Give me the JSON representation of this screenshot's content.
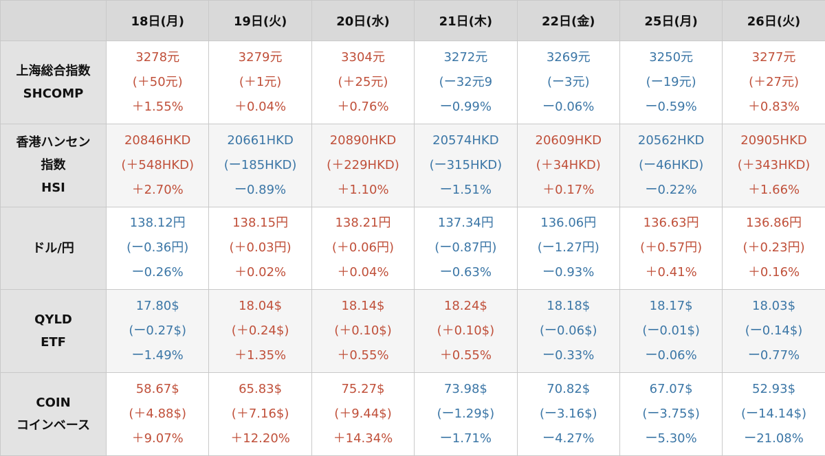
{
  "header": {
    "corner": "",
    "dates": [
      "18日(月)",
      "19日(火)",
      "20日(水)",
      "21日(木)",
      "22日(金)",
      "25日(月)",
      "26日(火)"
    ]
  },
  "colors": {
    "up": "#c0503a",
    "down": "#3b76a6",
    "header_bg": "#d9d9d9"
  },
  "rows": [
    {
      "label": [
        "上海総合指数",
        "SHCOMP"
      ],
      "cells": [
        {
          "dir": "up",
          "lines": [
            "3278元",
            "(＋50元)",
            "＋1.55%"
          ]
        },
        {
          "dir": "up",
          "lines": [
            "3279元",
            "(＋1元)",
            "＋0.04%"
          ]
        },
        {
          "dir": "up",
          "lines": [
            "3304元",
            "(＋25元)",
            "＋0.76%"
          ]
        },
        {
          "dir": "down",
          "lines": [
            "3272元",
            "(ー32元9",
            "ー0.99%"
          ]
        },
        {
          "dir": "down",
          "lines": [
            "3269元",
            "(ー3元)",
            "ー0.06%"
          ]
        },
        {
          "dir": "down",
          "lines": [
            "3250元",
            "(ー19元)",
            "ー0.59%"
          ]
        },
        {
          "dir": "up",
          "lines": [
            "3277元",
            "(＋27元)",
            "＋0.83%"
          ]
        }
      ]
    },
    {
      "label": [
        "香港ハンセン",
        "指数",
        "HSI"
      ],
      "cells": [
        {
          "dir": "up",
          "lines": [
            "20846HKD",
            "(＋548HKD)",
            "＋2.70%"
          ]
        },
        {
          "dir": "down",
          "lines": [
            "20661HKD",
            "(ー185HKD)",
            "ー0.89%"
          ]
        },
        {
          "dir": "up",
          "lines": [
            "20890HKD",
            "(＋229HKD)",
            "＋1.10%"
          ]
        },
        {
          "dir": "down",
          "lines": [
            "20574HKD",
            "(ー315HKD)",
            "ー1.51%"
          ]
        },
        {
          "dir": "up",
          "lines": [
            "20609HKD",
            "(＋34HKD)",
            "＋0.17%"
          ]
        },
        {
          "dir": "down",
          "lines": [
            "20562HKD",
            "(ー46HKD)",
            "ー0.22%"
          ]
        },
        {
          "dir": "up",
          "lines": [
            "20905HKD",
            "(＋343HKD)",
            "＋1.66%"
          ]
        }
      ]
    },
    {
      "label": [
        "ドル/円"
      ],
      "cells": [
        {
          "dir": "down",
          "lines": [
            "138.12円",
            "(ー0.36円)",
            "ー0.26%"
          ]
        },
        {
          "dir": "up",
          "lines": [
            "138.15円",
            "(＋0.03円)",
            "＋0.02%"
          ]
        },
        {
          "dir": "up",
          "lines": [
            "138.21円",
            "(＋0.06円)",
            "＋0.04%"
          ]
        },
        {
          "dir": "down",
          "lines": [
            "137.34円",
            "(ー0.87円)",
            "ー0.63%"
          ]
        },
        {
          "dir": "down",
          "lines": [
            "136.06円",
            "(ー1.27円)",
            "ー0.93%"
          ]
        },
        {
          "dir": "up",
          "lines": [
            "136.63円",
            "(＋0.57円)",
            "＋0.41%"
          ]
        },
        {
          "dir": "up",
          "lines": [
            "136.86円",
            "(＋0.23円)",
            "＋0.16%"
          ]
        }
      ]
    },
    {
      "label": [
        "QYLD",
        "ETF"
      ],
      "cells": [
        {
          "dir": "down",
          "lines": [
            "17.80$",
            "(ー0.27$)",
            "ー1.49%"
          ]
        },
        {
          "dir": "up",
          "lines": [
            "18.04$",
            "(＋0.24$)",
            "＋1.35%"
          ]
        },
        {
          "dir": "up",
          "lines": [
            "18.14$",
            "(＋0.10$)",
            "＋0.55%"
          ]
        },
        {
          "dir": "up",
          "lines": [
            "18.24$",
            "(＋0.10$)",
            "＋0.55%"
          ]
        },
        {
          "dir": "down",
          "lines": [
            "18.18$",
            "(ー0.06$)",
            "ー0.33%"
          ]
        },
        {
          "dir": "down",
          "lines": [
            "18.17$",
            "(ー0.01$)",
            "ー0.06%"
          ]
        },
        {
          "dir": "down",
          "lines": [
            "18.03$",
            "(ー0.14$)",
            "ー0.77%"
          ]
        }
      ]
    },
    {
      "label": [
        "COIN",
        "コインベース"
      ],
      "cells": [
        {
          "dir": "up",
          "lines": [
            "58.67$",
            "(＋4.88$)",
            "＋9.07%"
          ]
        },
        {
          "dir": "up",
          "lines": [
            "65.83$",
            "(＋7.16$)",
            "＋12.20%"
          ]
        },
        {
          "dir": "up",
          "lines": [
            "75.27$",
            "(＋9.44$)",
            "＋14.34%"
          ]
        },
        {
          "dir": "down",
          "lines": [
            "73.98$",
            "(ー1.29$)",
            "ー1.71%"
          ]
        },
        {
          "dir": "down",
          "lines": [
            "70.82$",
            "(ー3.16$)",
            "ー4.27%"
          ]
        },
        {
          "dir": "down",
          "lines": [
            "67.07$",
            "(ー3.75$)",
            "ー5.30%"
          ]
        },
        {
          "dir": "down",
          "lines": [
            "52.93$",
            "(ー14.14$)",
            "ー21.08%"
          ]
        }
      ]
    }
  ]
}
